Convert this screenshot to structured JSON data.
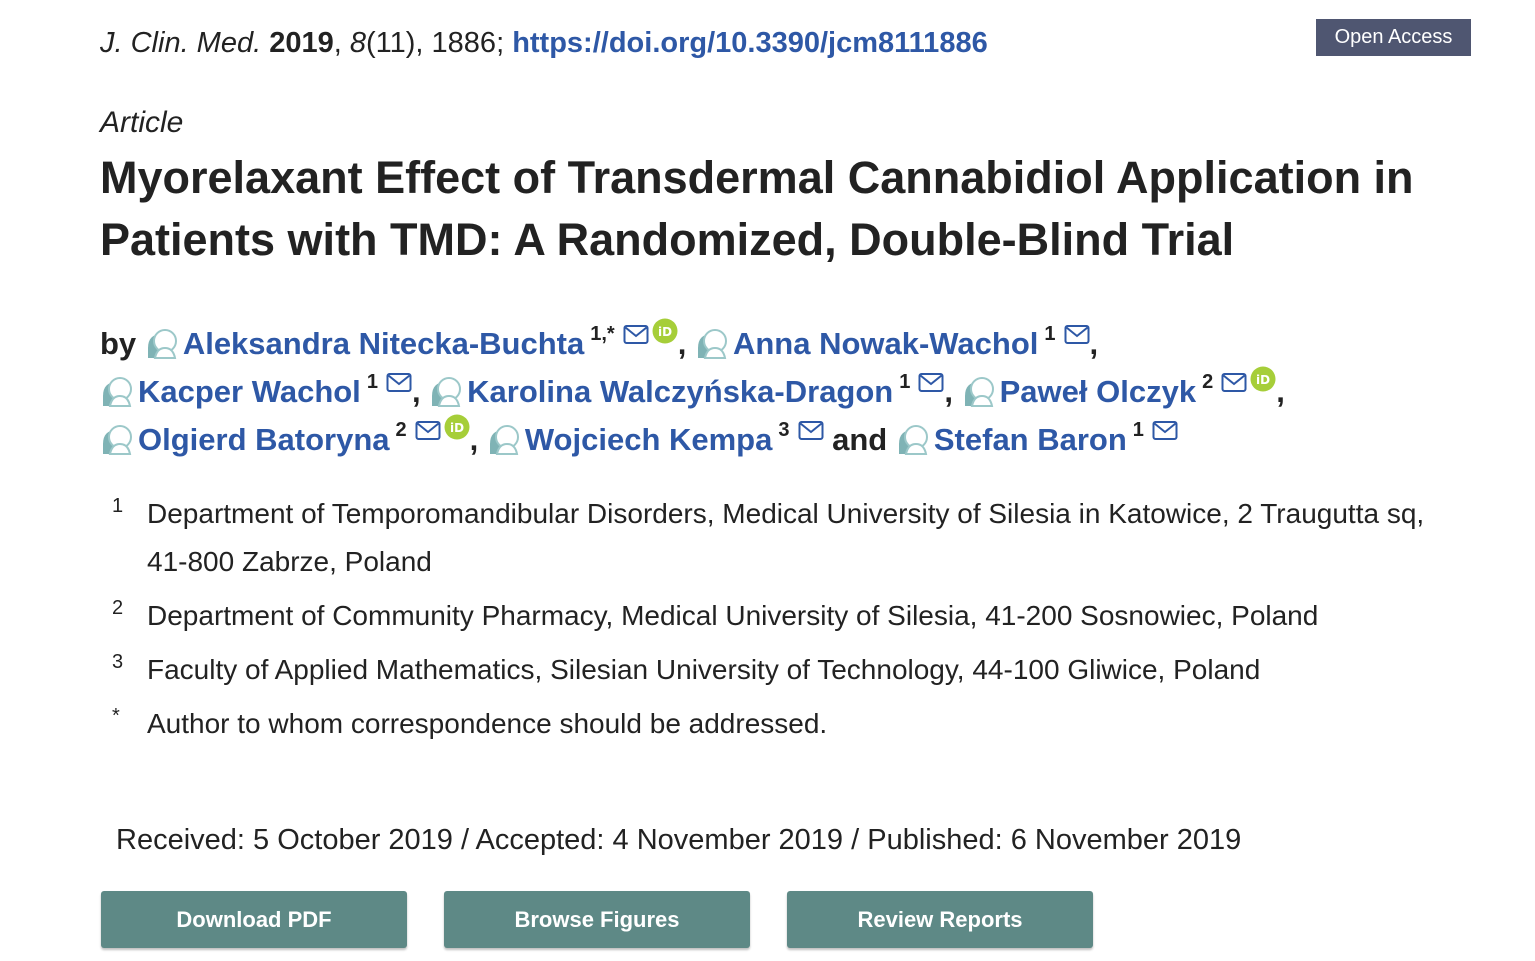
{
  "citation": {
    "journal": "J. Clin. Med.",
    "year": "2019",
    "volume": "8",
    "issue_pages": "(11), 1886;",
    "doi": "https://doi.org/10.3390/jcm8111886"
  },
  "badge": "Open Access",
  "article_type": "Article",
  "title": "Myorelaxant Effect of Transdermal Cannabidiol Application in Patients with TMD: A Randomized, Double-Blind Trial",
  "authors_prefix": "by",
  "authors_connector": "and",
  "authors": [
    {
      "name": "Aleksandra Nitecka-Buchta",
      "affil": "1,*",
      "orcid": true
    },
    {
      "name": "Anna Nowak-Wachol",
      "affil": "1",
      "orcid": false
    },
    {
      "name": "Kacper Wachol",
      "affil": "1",
      "orcid": false
    },
    {
      "name": "Karolina Walczyńska-Dragon",
      "affil": "1",
      "orcid": false
    },
    {
      "name": "Paweł Olczyk",
      "affil": "2",
      "orcid": true
    },
    {
      "name": "Olgierd Batoryna",
      "affil": "2",
      "orcid": true
    },
    {
      "name": "Wojciech Kempa",
      "affil": "3",
      "orcid": false
    },
    {
      "name": "Stefan Baron",
      "affil": "1",
      "orcid": false
    }
  ],
  "affiliations": [
    {
      "num": "1",
      "text": "Department of Temporomandibular Disorders, Medical University of Silesia in Katowice, 2 Traugutta sq, 41-800 Zabrze, Poland"
    },
    {
      "num": "2",
      "text": "Department of Community Pharmacy, Medical University of Silesia, 41-200 Sosnowiec, Poland"
    },
    {
      "num": "3",
      "text": "Faculty of Applied Mathematics, Silesian University of Technology, 44-100 Gliwice, Poland"
    },
    {
      "num": "*",
      "text": "Author to whom correspondence should be addressed."
    }
  ],
  "dates": "Received: 5 October 2019 / Accepted: 4 November 2019 / Published: 6 November 2019",
  "buttons": {
    "download": "Download PDF",
    "figures": "Browse Figures",
    "reports": "Review Reports"
  },
  "colors": {
    "link": "#2e58a6",
    "badge_bg": "#4f5671",
    "button_bg": "#5e8986",
    "orcid": "#a6ce39"
  },
  "icons": [
    "author-avatar-icon",
    "mail-icon",
    "orcid-icon"
  ]
}
